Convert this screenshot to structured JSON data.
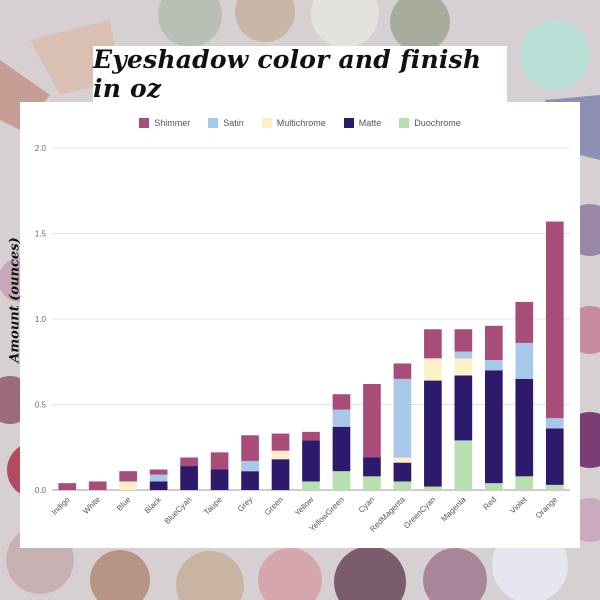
{
  "title": "Eyeshadow color and finish in oz",
  "colors": {
    "Shimmer": "#a84d79",
    "Satin": "#a7c8e8",
    "Multichrome": "#fdefc6",
    "Matte": "#2e1a6b",
    "Duochrome": "#b9dfb0"
  },
  "chart_data": {
    "type": "bar",
    "stacked": true,
    "title": "Eyeshadow color and finish in oz",
    "xlabel": "",
    "ylabel": "Amount (ounces)",
    "ylim": [
      0,
      2.0
    ],
    "yticks": [
      "0.0",
      "0.5",
      "1.0",
      "1.5",
      "2.0"
    ],
    "grid": true,
    "legend_position": "top",
    "categories": [
      "Indigo",
      "White",
      "Blue",
      "Black",
      "BlueCyan",
      "Taupe",
      "Grey",
      "Green",
      "Yellow",
      "YellowGreen",
      "Cyan",
      "RedMagenta",
      "GreenCyan",
      "Magenta",
      "Red",
      "Violet",
      "Orange"
    ],
    "series": [
      {
        "name": "Duochrome",
        "values": [
          0,
          0,
          0,
          0,
          0,
          0,
          0,
          0,
          0.05,
          0.11,
          0.08,
          0.05,
          0.02,
          0.29,
          0.04,
          0.08,
          0.03
        ]
      },
      {
        "name": "Matte",
        "values": [
          0,
          0,
          0,
          0.05,
          0.14,
          0.12,
          0.11,
          0.18,
          0.24,
          0.26,
          0.11,
          0.11,
          0.62,
          0.38,
          0.66,
          0.57,
          0.33
        ]
      },
      {
        "name": "Multichrome",
        "values": [
          0,
          0,
          0.05,
          0,
          0,
          0,
          0,
          0.05,
          0,
          0,
          0,
          0.03,
          0.13,
          0.1,
          0,
          0,
          0
        ]
      },
      {
        "name": "Satin",
        "values": [
          0,
          0,
          0,
          0.04,
          0,
          0,
          0.06,
          0,
          0,
          0.1,
          0,
          0.46,
          0,
          0.04,
          0.06,
          0.21,
          0.06
        ]
      },
      {
        "name": "Shimmer",
        "values": [
          0.04,
          0.05,
          0.06,
          0.03,
          0.05,
          0.1,
          0.15,
          0.1,
          0.05,
          0.09,
          0.43,
          0.09,
          0.17,
          0.13,
          0.2,
          0.24,
          1.15
        ]
      }
    ]
  }
}
